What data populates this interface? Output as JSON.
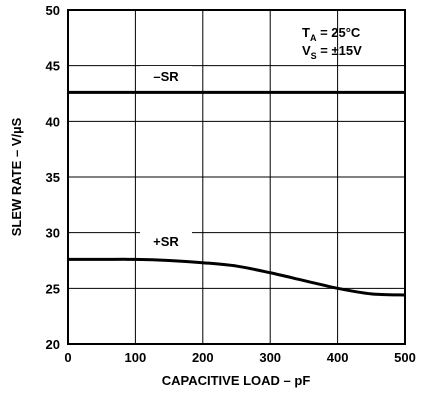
{
  "chart_data": {
    "type": "line",
    "xlabel": "CAPACITIVE LOAD – pF",
    "ylabel": "SLEW RATE – V/µS",
    "xlim": [
      0,
      500
    ],
    "ylim": [
      20,
      50
    ],
    "x_ticks": [
      "0",
      "100",
      "200",
      "300",
      "400",
      "500"
    ],
    "y_ticks": [
      "20",
      "25",
      "30",
      "35",
      "40",
      "45",
      "50"
    ],
    "grid": true,
    "annotations": {
      "ta_main": "T",
      "ta_sub": "A",
      "ta_value": " = 25°C",
      "vs_main": "V",
      "vs_sub": "S",
      "vs_value": " = ±15V"
    },
    "series": [
      {
        "name": "–SR",
        "x": [
          0,
          100,
          200,
          300,
          400,
          500
        ],
        "y": [
          42.6,
          42.6,
          42.6,
          42.6,
          42.6,
          42.6
        ]
      },
      {
        "name": "+SR",
        "x": [
          0,
          50,
          100,
          150,
          200,
          250,
          300,
          350,
          400,
          450,
          500
        ],
        "y": [
          27.6,
          27.6,
          27.6,
          27.5,
          27.3,
          27.0,
          26.4,
          25.7,
          25.0,
          24.5,
          24.4
        ]
      }
    ]
  }
}
